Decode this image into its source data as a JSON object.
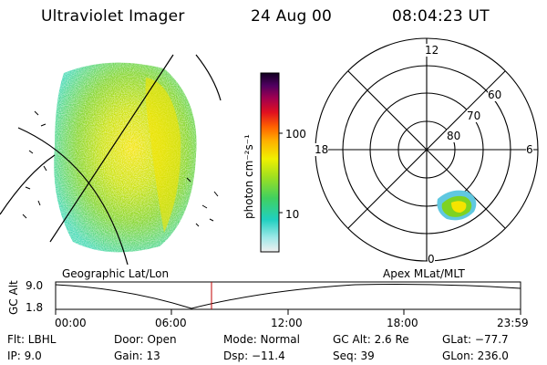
{
  "header": {
    "title": "Ultraviolet Imager",
    "date": "24 Aug 00",
    "time": "08:04:23 UT"
  },
  "colorbar": {
    "unit_label": "photon cm⁻²s⁻¹",
    "ticks": [
      "100",
      "10"
    ]
  },
  "polar": {
    "mlt_labels": [
      "12",
      "18",
      "6",
      "0"
    ],
    "lat_labels": [
      "60",
      "70",
      "80"
    ]
  },
  "panel_labels": {
    "left": "Geographic Lat/Lon",
    "right": "Apex MLat/MLT"
  },
  "altplot": {
    "ylabel": "GC Alt",
    "y_ticks": [
      "9.0",
      "1.8"
    ],
    "x_ticks": [
      "00:00",
      "06:00",
      "12:00",
      "18:00",
      "23:59"
    ]
  },
  "info": {
    "flt": "Flt: LBHL",
    "ip": "IP:  9.0",
    "door": "Door: Open",
    "gain": "Gain: 13",
    "mode": "Mode: Normal",
    "dsp": "Dsp:  −11.4",
    "gcalt": "GC Alt: 2.6 Re",
    "seq": "Seq: 39",
    "glat": "GLat: −77.7",
    "glon": "GLon: 236.0"
  },
  "colors": {
    "accent_line": "#c00000",
    "aurora_core": "#f5e400",
    "aurora_mid": "#7ed321",
    "aurora_edge": "#00c8a0"
  }
}
